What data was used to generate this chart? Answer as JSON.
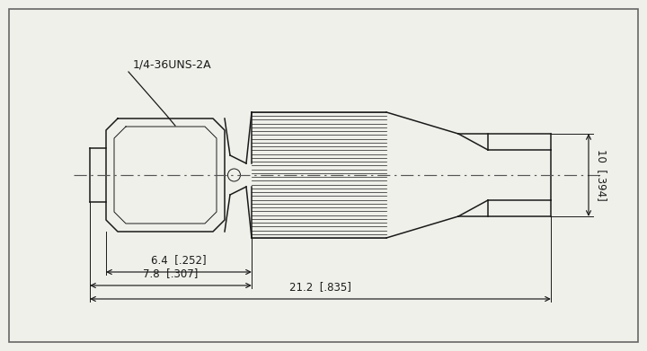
{
  "bg_color": "#f0f0eb",
  "line_color": "#1a1a1a",
  "centerline_color": "#555555",
  "title": "1/4-36UNS-2A",
  "dim_6_4": "6.4  [.252]",
  "dim_7_8": "7.8  [.307]",
  "dim_21_2": "21.2  [.835]",
  "dim_10": "10  [.394]",
  "lw": 1.1,
  "lw_thin": 0.7,
  "lw_knurl": 0.55
}
